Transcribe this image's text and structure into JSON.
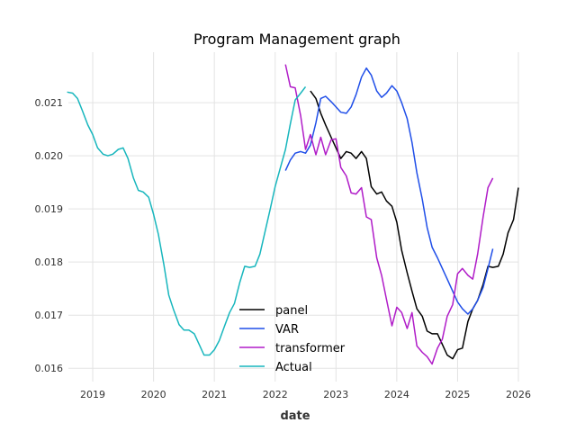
{
  "chart_data": {
    "type": "line",
    "title": "Program Management graph",
    "xlabel": "date",
    "ylabel": "",
    "xlim": [
      2018.6,
      2026.0
    ],
    "ylim": [
      0.01575,
      0.02195
    ],
    "x_ticks": [
      2019,
      2020,
      2021,
      2022,
      2023,
      2024,
      2025,
      2026
    ],
    "x_tick_labels": [
      "2019",
      "2020",
      "2021",
      "2022",
      "2023",
      "2024",
      "2025",
      "2026"
    ],
    "y_ticks": [
      0.016,
      0.017,
      0.018,
      0.019,
      0.02,
      0.021
    ],
    "y_tick_labels": [
      "0.016",
      "0.017",
      "0.018",
      "0.019",
      "0.020",
      "0.021"
    ],
    "grid": true,
    "legend_position": "lower-center",
    "series": [
      {
        "name": "panel",
        "color": "#000000",
        "points": [
          [
            2022.58,
            0.02122
          ],
          [
            2022.67,
            0.02108
          ],
          [
            2022.75,
            0.0208
          ],
          [
            2022.83,
            0.02058
          ],
          [
            2022.92,
            0.02035
          ],
          [
            2023.0,
            0.02015
          ],
          [
            2023.08,
            0.01995
          ],
          [
            2023.17,
            0.02008
          ],
          [
            2023.25,
            0.02005
          ],
          [
            2023.33,
            0.01995
          ],
          [
            2023.42,
            0.02008
          ],
          [
            2023.5,
            0.01995
          ],
          [
            2023.58,
            0.01942
          ],
          [
            2023.67,
            0.01928
          ],
          [
            2023.75,
            0.01932
          ],
          [
            2023.83,
            0.01915
          ],
          [
            2023.92,
            0.01905
          ],
          [
            2024.0,
            0.01875
          ],
          [
            2024.08,
            0.01822
          ],
          [
            2024.17,
            0.0178
          ],
          [
            2024.25,
            0.01745
          ],
          [
            2024.33,
            0.01712
          ],
          [
            2024.42,
            0.01698
          ],
          [
            2024.5,
            0.0167
          ],
          [
            2024.58,
            0.01665
          ],
          [
            2024.67,
            0.01665
          ],
          [
            2024.75,
            0.01645
          ],
          [
            2024.83,
            0.01625
          ],
          [
            2024.92,
            0.01618
          ],
          [
            2025.0,
            0.01635
          ],
          [
            2025.08,
            0.01638
          ],
          [
            2025.17,
            0.01688
          ],
          [
            2025.25,
            0.01712
          ],
          [
            2025.33,
            0.01728
          ],
          [
            2025.42,
            0.01758
          ],
          [
            2025.5,
            0.01792
          ],
          [
            2025.58,
            0.0179
          ],
          [
            2025.67,
            0.01792
          ],
          [
            2025.75,
            0.01815
          ],
          [
            2025.83,
            0.01855
          ],
          [
            2025.92,
            0.0188
          ],
          [
            2026.0,
            0.0194
          ]
        ]
      },
      {
        "name": "VAR",
        "color": "#1f4ee8",
        "points": [
          [
            2022.17,
            0.01972
          ],
          [
            2022.25,
            0.01992
          ],
          [
            2022.33,
            0.02005
          ],
          [
            2022.42,
            0.02008
          ],
          [
            2022.5,
            0.02005
          ],
          [
            2022.58,
            0.0202
          ],
          [
            2022.67,
            0.02062
          ],
          [
            2022.75,
            0.02108
          ],
          [
            2022.83,
            0.02112
          ],
          [
            2022.92,
            0.02102
          ],
          [
            2023.0,
            0.02092
          ],
          [
            2023.08,
            0.02082
          ],
          [
            2023.17,
            0.0208
          ],
          [
            2023.25,
            0.02092
          ],
          [
            2023.33,
            0.02115
          ],
          [
            2023.42,
            0.02148
          ],
          [
            2023.5,
            0.02165
          ],
          [
            2023.58,
            0.02152
          ],
          [
            2023.67,
            0.02122
          ],
          [
            2023.75,
            0.0211
          ],
          [
            2023.83,
            0.02118
          ],
          [
            2023.92,
            0.02132
          ],
          [
            2024.0,
            0.02122
          ],
          [
            2024.08,
            0.021
          ],
          [
            2024.17,
            0.0207
          ],
          [
            2024.25,
            0.02025
          ],
          [
            2024.33,
            0.01968
          ],
          [
            2024.42,
            0.01918
          ],
          [
            2024.5,
            0.01865
          ],
          [
            2024.58,
            0.01828
          ],
          [
            2024.67,
            0.01808
          ],
          [
            2024.75,
            0.01788
          ],
          [
            2024.83,
            0.01768
          ],
          [
            2024.92,
            0.01745
          ],
          [
            2025.0,
            0.01725
          ],
          [
            2025.08,
            0.01712
          ],
          [
            2025.17,
            0.01702
          ],
          [
            2025.25,
            0.01712
          ],
          [
            2025.33,
            0.01728
          ],
          [
            2025.42,
            0.01752
          ],
          [
            2025.5,
            0.01788
          ],
          [
            2025.58,
            0.01825
          ]
        ]
      },
      {
        "name": "transformer",
        "color": "#b01cc8",
        "points": [
          [
            2022.17,
            0.02172
          ],
          [
            2022.25,
            0.0213
          ],
          [
            2022.33,
            0.02128
          ],
          [
            2022.42,
            0.02075
          ],
          [
            2022.5,
            0.02012
          ],
          [
            2022.58,
            0.0204
          ],
          [
            2022.67,
            0.02002
          ],
          [
            2022.75,
            0.02035
          ],
          [
            2022.83,
            0.02002
          ],
          [
            2022.92,
            0.0203
          ],
          [
            2023.0,
            0.02032
          ],
          [
            2023.08,
            0.01978
          ],
          [
            2023.17,
            0.01962
          ],
          [
            2023.25,
            0.0193
          ],
          [
            2023.33,
            0.01928
          ],
          [
            2023.42,
            0.0194
          ],
          [
            2023.5,
            0.01885
          ],
          [
            2023.58,
            0.0188
          ],
          [
            2023.67,
            0.01808
          ],
          [
            2023.75,
            0.01775
          ],
          [
            2023.83,
            0.0173
          ],
          [
            2023.92,
            0.0168
          ],
          [
            2024.0,
            0.01715
          ],
          [
            2024.08,
            0.01705
          ],
          [
            2024.17,
            0.01675
          ],
          [
            2024.25,
            0.01705
          ],
          [
            2024.33,
            0.01642
          ],
          [
            2024.42,
            0.0163
          ],
          [
            2024.5,
            0.01622
          ],
          [
            2024.58,
            0.01608
          ],
          [
            2024.67,
            0.01638
          ],
          [
            2024.75,
            0.01655
          ],
          [
            2024.83,
            0.01698
          ],
          [
            2024.92,
            0.0172
          ],
          [
            2025.0,
            0.01778
          ],
          [
            2025.08,
            0.01788
          ],
          [
            2025.17,
            0.01775
          ],
          [
            2025.25,
            0.01768
          ],
          [
            2025.33,
            0.01815
          ],
          [
            2025.42,
            0.01885
          ],
          [
            2025.5,
            0.0194
          ],
          [
            2025.58,
            0.01958
          ]
        ]
      },
      {
        "name": "Actual",
        "color": "#17b6bd",
        "points": [
          [
            2018.58,
            0.0212
          ],
          [
            2018.67,
            0.02118
          ],
          [
            2018.75,
            0.02108
          ],
          [
            2018.83,
            0.02085
          ],
          [
            2018.92,
            0.02058
          ],
          [
            2019.0,
            0.0204
          ],
          [
            2019.08,
            0.02015
          ],
          [
            2019.17,
            0.02003
          ],
          [
            2019.25,
            0.02
          ],
          [
            2019.33,
            0.02003
          ],
          [
            2019.42,
            0.02012
          ],
          [
            2019.5,
            0.02015
          ],
          [
            2019.58,
            0.01995
          ],
          [
            2019.67,
            0.01958
          ],
          [
            2019.75,
            0.01935
          ],
          [
            2019.83,
            0.01932
          ],
          [
            2019.92,
            0.01922
          ],
          [
            2020.0,
            0.0189
          ],
          [
            2020.08,
            0.01852
          ],
          [
            2020.17,
            0.01795
          ],
          [
            2020.25,
            0.01738
          ],
          [
            2020.33,
            0.0171
          ],
          [
            2020.42,
            0.01682
          ],
          [
            2020.5,
            0.01672
          ],
          [
            2020.58,
            0.01672
          ],
          [
            2020.67,
            0.01665
          ],
          [
            2020.75,
            0.01645
          ],
          [
            2020.83,
            0.01625
          ],
          [
            2020.92,
            0.01625
          ],
          [
            2021.0,
            0.01635
          ],
          [
            2021.08,
            0.01652
          ],
          [
            2021.17,
            0.0168
          ],
          [
            2021.25,
            0.01705
          ],
          [
            2021.33,
            0.01722
          ],
          [
            2021.42,
            0.01762
          ],
          [
            2021.5,
            0.01792
          ],
          [
            2021.58,
            0.0179
          ],
          [
            2021.67,
            0.01792
          ],
          [
            2021.75,
            0.01815
          ],
          [
            2021.83,
            0.01855
          ],
          [
            2021.92,
            0.019
          ],
          [
            2022.0,
            0.01942
          ],
          [
            2022.08,
            0.01975
          ],
          [
            2022.17,
            0.02012
          ],
          [
            2022.25,
            0.0206
          ],
          [
            2022.33,
            0.02105
          ],
          [
            2022.42,
            0.02118
          ],
          [
            2022.5,
            0.0213
          ]
        ]
      }
    ]
  }
}
